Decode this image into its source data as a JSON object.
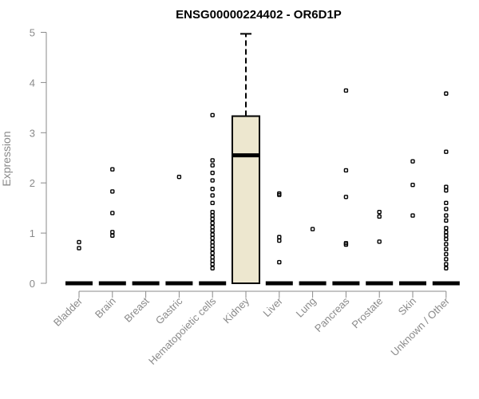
{
  "chart_data": {
    "type": "boxplot",
    "title": "ENSG00000224402 - OR6D1P",
    "ylabel": "Expression",
    "xlabel": "",
    "ylim": [
      0,
      5
    ],
    "yticks": [
      0,
      1,
      2,
      3,
      4,
      5
    ],
    "grid": false,
    "colors": {
      "box_fill": "#ede7cf",
      "axis": "#8a8a8a",
      "ink": "#000000"
    },
    "categories": [
      "Bladder",
      "Brain",
      "Breast",
      "Gastric",
      "Hematopoietic cells",
      "Kidney",
      "Liver",
      "Lung",
      "Pancreas",
      "Prostate",
      "Skin",
      "Unknown / Other"
    ],
    "boxes": [
      {
        "category": "Bladder",
        "q1": 0,
        "median": 0,
        "q3": 0,
        "whisker_low": 0,
        "whisker_high": 0,
        "outliers": [
          0.7,
          0.82
        ]
      },
      {
        "category": "Brain",
        "q1": 0,
        "median": 0,
        "q3": 0,
        "whisker_low": 0,
        "whisker_high": 0,
        "outliers": [
          0.95,
          1.02,
          1.4,
          1.83,
          2.27
        ]
      },
      {
        "category": "Breast",
        "q1": 0,
        "median": 0,
        "q3": 0,
        "whisker_low": 0,
        "whisker_high": 0,
        "outliers": []
      },
      {
        "category": "Gastric",
        "q1": 0,
        "median": 0,
        "q3": 0,
        "whisker_low": 0,
        "whisker_high": 0,
        "outliers": [
          2.12
        ]
      },
      {
        "category": "Hematopoietic cells",
        "q1": 0,
        "median": 0,
        "q3": 0,
        "whisker_low": 0,
        "whisker_high": 0,
        "outliers": [
          0.3,
          0.38,
          0.45,
          0.52,
          0.6,
          0.68,
          0.75,
          0.82,
          0.9,
          0.97,
          1.05,
          1.12,
          1.2,
          1.28,
          1.35,
          1.42,
          1.6,
          1.75,
          1.88,
          2.05,
          2.2,
          2.35,
          2.45,
          3.35
        ]
      },
      {
        "category": "Kidney",
        "q1": 0,
        "median": 2.55,
        "q3": 3.33,
        "whisker_low": 0,
        "whisker_high": 4.97,
        "outliers": []
      },
      {
        "category": "Liver",
        "q1": 0,
        "median": 0,
        "q3": 0,
        "whisker_low": 0,
        "whisker_high": 0,
        "outliers": [
          0.42,
          0.85,
          0.92,
          1.76,
          1.79
        ]
      },
      {
        "category": "Lung",
        "q1": 0,
        "median": 0,
        "q3": 0,
        "whisker_low": 0,
        "whisker_high": 0,
        "outliers": [
          1.08
        ]
      },
      {
        "category": "Pancreas",
        "q1": 0,
        "median": 0,
        "q3": 0,
        "whisker_low": 0,
        "whisker_high": 0,
        "outliers": [
          0.77,
          0.8,
          1.72,
          2.25,
          3.84
        ]
      },
      {
        "category": "Prostate",
        "q1": 0,
        "median": 0,
        "q3": 0,
        "whisker_low": 0,
        "whisker_high": 0,
        "outliers": [
          0.83,
          1.33,
          1.42
        ]
      },
      {
        "category": "Skin",
        "q1": 0,
        "median": 0,
        "q3": 0,
        "whisker_low": 0,
        "whisker_high": 0,
        "outliers": [
          1.35,
          1.96,
          2.43
        ]
      },
      {
        "category": "Unknown / Other",
        "q1": 0,
        "median": 0,
        "q3": 0,
        "whisker_low": 0,
        "whisker_high": 0,
        "outliers": [
          0.3,
          0.38,
          0.48,
          0.58,
          0.68,
          0.78,
          0.88,
          0.95,
          1.02,
          1.1,
          1.25,
          1.35,
          1.48,
          1.6,
          1.85,
          1.92,
          2.62,
          3.78
        ]
      }
    ]
  }
}
